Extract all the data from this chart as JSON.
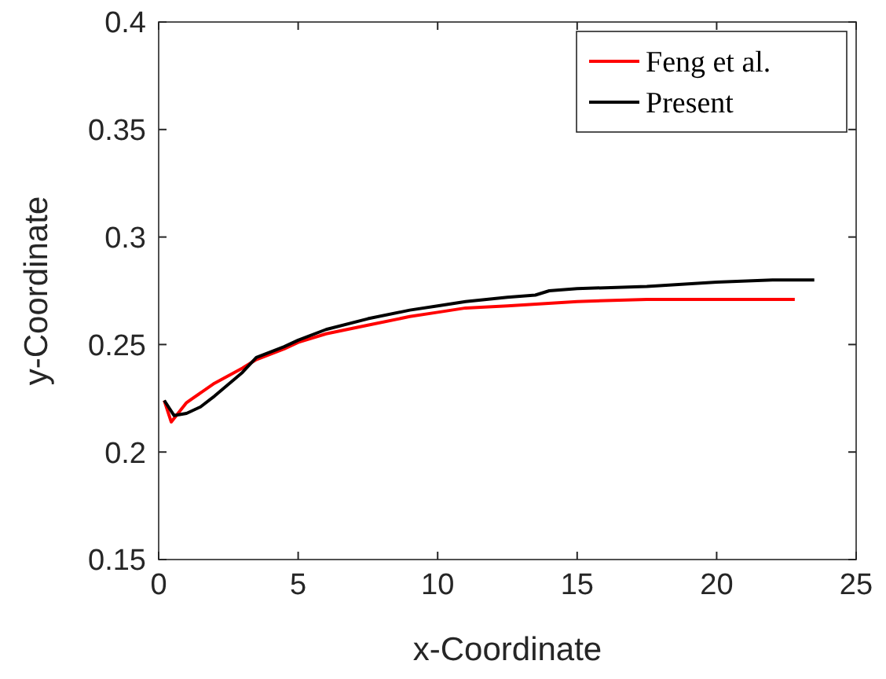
{
  "chart_data": {
    "type": "line",
    "xlabel": "x-Coordinate",
    "ylabel": "y-Coordinate",
    "xlim": [
      0,
      25
    ],
    "ylim": [
      0.15,
      0.4
    ],
    "xticks": [
      0,
      5,
      10,
      15,
      20,
      25
    ],
    "yticks": [
      0.15,
      0.2,
      0.25,
      0.3,
      0.35,
      0.4
    ],
    "legend": "top right",
    "grid": false,
    "series": [
      {
        "name": "Feng et al.",
        "color": "#ff0000",
        "x": [
          0.2,
          0.45,
          1,
          2,
          3,
          3.5,
          4.5,
          5,
          6,
          7.5,
          9,
          10,
          11,
          12.5,
          15,
          17.5,
          20,
          21,
          22.8
        ],
        "values": [
          0.224,
          0.214,
          0.223,
          0.232,
          0.239,
          0.243,
          0.248,
          0.251,
          0.255,
          0.259,
          0.263,
          0.265,
          0.267,
          0.268,
          0.27,
          0.271,
          0.271,
          0.271,
          0.271
        ]
      },
      {
        "name": "Present",
        "color": "#000000",
        "x": [
          0.2,
          0.55,
          1,
          1.5,
          2,
          3,
          3.5,
          4.5,
          5,
          6,
          7.5,
          9,
          10,
          11,
          12.5,
          13.5,
          14,
          15,
          17.5,
          20,
          22,
          23.5
        ],
        "values": [
          0.224,
          0.217,
          0.218,
          0.221,
          0.226,
          0.237,
          0.244,
          0.249,
          0.252,
          0.257,
          0.262,
          0.266,
          0.268,
          0.27,
          0.272,
          0.273,
          0.275,
          0.276,
          0.277,
          0.279,
          0.28,
          0.28
        ]
      }
    ]
  }
}
